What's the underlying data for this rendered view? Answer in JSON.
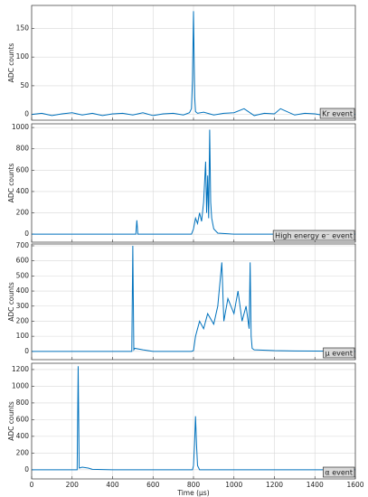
{
  "chart_data": [
    {
      "type": "line",
      "ylabel": "ADC counts",
      "annotation": "Kr event",
      "color": "#0072bd",
      "grid": true,
      "x": [
        0,
        50,
        100,
        150,
        200,
        250,
        300,
        350,
        400,
        450,
        500,
        550,
        600,
        650,
        700,
        750,
        780,
        790,
        795,
        800,
        803,
        806,
        810,
        820,
        850,
        900,
        950,
        1000,
        1050,
        1100,
        1150,
        1200,
        1230,
        1300,
        1350,
        1400,
        1450,
        1500,
        1550,
        1600
      ],
      "values": [
        0,
        2,
        -2,
        1,
        3,
        -1,
        2,
        -2,
        1,
        2,
        -1,
        3,
        -2,
        1,
        2,
        -1,
        3,
        10,
        60,
        180,
        100,
        30,
        5,
        2,
        4,
        -1,
        2,
        3,
        10,
        -2,
        2,
        1,
        10,
        -1,
        2,
        1,
        -2,
        2,
        1,
        0
      ],
      "xlim": [
        0,
        1600
      ],
      "xticks": [
        0,
        200,
        400,
        600,
        800,
        1000,
        1200,
        1400,
        1600
      ],
      "ylim": [
        -10,
        190
      ],
      "yticks": [
        0,
        50,
        100,
        150
      ]
    },
    {
      "type": "line",
      "ylabel": "ADC counts",
      "annotation": "High energy e⁻ event",
      "color": "#0072bd",
      "grid": true,
      "x": [
        0,
        100,
        200,
        300,
        400,
        500,
        515,
        520,
        525,
        600,
        700,
        790,
        800,
        810,
        820,
        830,
        840,
        850,
        860,
        865,
        870,
        875,
        880,
        885,
        890,
        900,
        920,
        1000,
        1200,
        1400,
        1600
      ],
      "values": [
        0,
        0,
        0,
        0,
        0,
        0,
        0,
        130,
        0,
        0,
        0,
        0,
        50,
        150,
        100,
        200,
        120,
        300,
        680,
        200,
        550,
        150,
        980,
        300,
        150,
        50,
        10,
        0,
        0,
        0,
        0
      ],
      "xlim": [
        0,
        1600
      ],
      "xticks": [
        0,
        200,
        400,
        600,
        800,
        1000,
        1200,
        1400,
        1600
      ],
      "ylim": [
        -75,
        1035
      ],
      "yticks": [
        0,
        200,
        400,
        600,
        800,
        1000
      ]
    },
    {
      "type": "line",
      "ylabel": "ADC counts",
      "annotation": "μ event",
      "color": "#0072bd",
      "grid": true,
      "x": [
        0,
        100,
        200,
        300,
        400,
        495,
        500,
        505,
        510,
        550,
        600,
        700,
        790,
        800,
        810,
        830,
        850,
        870,
        900,
        920,
        940,
        950,
        970,
        1000,
        1020,
        1040,
        1060,
        1075,
        1080,
        1085,
        1090,
        1100,
        1200,
        1300,
        1400,
        1500,
        1600
      ],
      "values": [
        0,
        0,
        0,
        0,
        0,
        0,
        700,
        10,
        20,
        10,
        0,
        0,
        0,
        5,
        100,
        200,
        150,
        250,
        180,
        300,
        590,
        200,
        350,
        250,
        400,
        200,
        300,
        150,
        590,
        100,
        20,
        10,
        5,
        3,
        2,
        1,
        0
      ],
      "xlim": [
        0,
        1600
      ],
      "xticks": [
        0,
        200,
        400,
        600,
        800,
        1000,
        1200,
        1400,
        1600
      ],
      "ylim": [
        -55,
        712
      ],
      "yticks": [
        0,
        100,
        200,
        300,
        400,
        500,
        600,
        700
      ]
    },
    {
      "type": "line",
      "ylabel": "ADC counts",
      "annotation": "α event",
      "xlabel": "Time (μs)",
      "color": "#0072bd",
      "grid": true,
      "x": [
        0,
        100,
        200,
        225,
        230,
        235,
        250,
        280,
        300,
        400,
        500,
        600,
        700,
        795,
        800,
        805,
        810,
        815,
        820,
        830,
        900,
        1000,
        1200,
        1400,
        1600
      ],
      "values": [
        0,
        0,
        0,
        0,
        1240,
        20,
        30,
        20,
        5,
        0,
        0,
        0,
        0,
        0,
        50,
        300,
        640,
        300,
        50,
        0,
        0,
        0,
        0,
        0,
        0
      ],
      "xlim": [
        0,
        1600
      ],
      "xticks": [
        0,
        200,
        400,
        600,
        800,
        1000,
        1200,
        1400,
        1600
      ],
      "ylim": [
        -110,
        1275
      ],
      "yticks": [
        0,
        200,
        400,
        600,
        800,
        1000,
        1200
      ]
    }
  ]
}
